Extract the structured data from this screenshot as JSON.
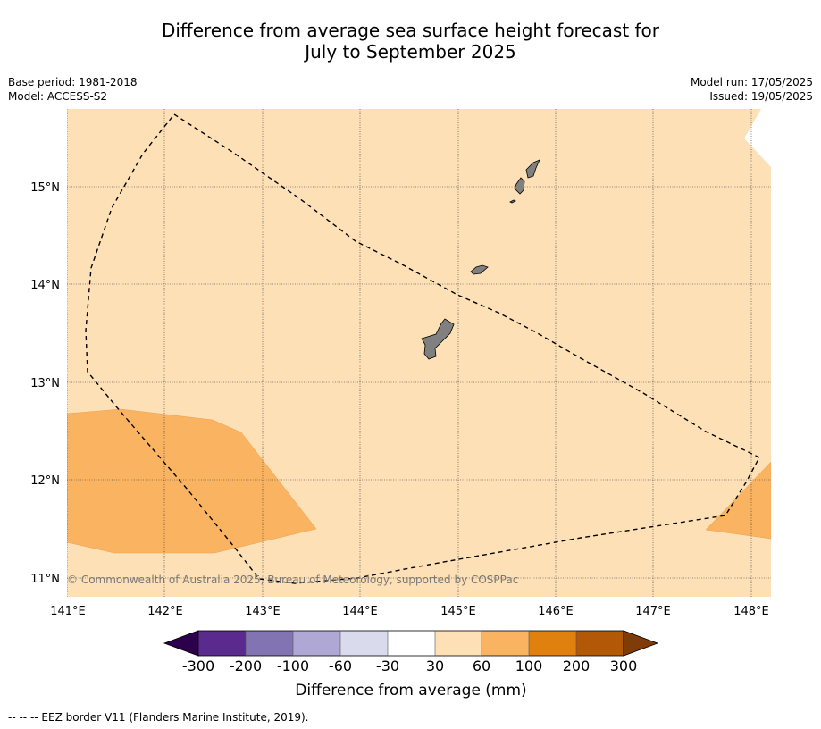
{
  "title_line1": "Difference from average sea surface height forecast for",
  "title_line2": "July to September 2025",
  "meta_left": [
    "Base period: 1981-2018",
    "Model: ACCESS-S2"
  ],
  "meta_right": [
    "Model run: 17/05/2025",
    "Issued: 19/05/2025"
  ],
  "copyright": "© Commonwealth of Australia 2025, Bureau of Meteorology, supported by COSPPac",
  "footer_note": "--  --  -- EEZ border V11 (Flanders Marine Institute, 2019).",
  "lon_labels": [
    "141°E",
    "142°E",
    "143°E",
    "144°E",
    "145°E",
    "146°E",
    "147°E",
    "148°E"
  ],
  "lat_labels": [
    "11°N",
    "12°N",
    "13°N",
    "14°N",
    "15°N"
  ],
  "colorbar": {
    "label": "Difference from average (mm)",
    "ticks": [
      "-300",
      "-200",
      "-100",
      "-60",
      "-30",
      "30",
      "60",
      "100",
      "200",
      "300"
    ],
    "colors": [
      "#5a2a8e",
      "#8273b2",
      "#b0a8d4",
      "#d9daec",
      "#ffffff",
      "#fde0b6",
      "#fab461",
      "#e0800f",
      "#b35806"
    ],
    "under_color": "#2d004b",
    "over_color": "#7f3b08"
  },
  "map_colors": {
    "background_band": "#fde0b6",
    "elevated_band": "#fab461",
    "land": "#808080",
    "no_data": "#ffffff"
  },
  "chart_data": {
    "type": "heatmap",
    "lon_range": [
      141.0,
      148.2
    ],
    "lat_range": [
      10.8,
      15.8
    ],
    "dominant_range_mm": [
      30,
      60
    ],
    "regions": [
      {
        "range_mm": [
          60,
          100
        ],
        "location": "southwest, near 141°E–143.5°E, 11.2°N–12.7°N"
      },
      {
        "range_mm": [
          60,
          100
        ],
        "location": "southeast edge, near 147.5°E–148.2°E, 11.4°N–12.2°N"
      }
    ]
  }
}
